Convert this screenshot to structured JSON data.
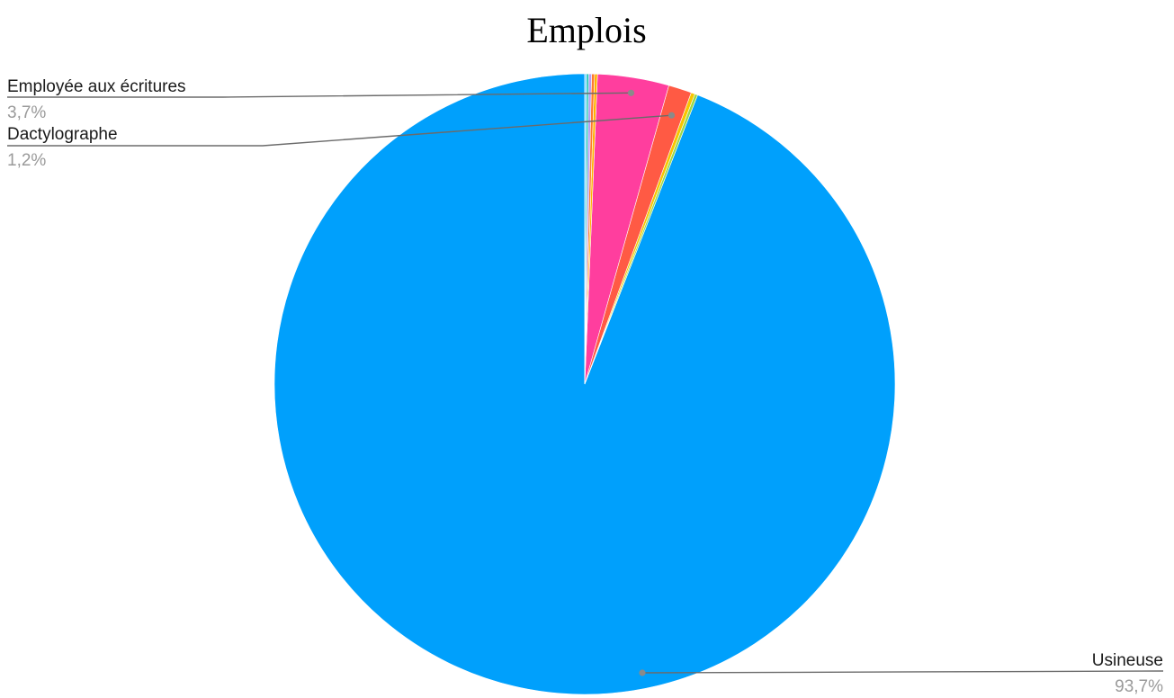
{
  "chart_data": {
    "type": "pie",
    "title": "Emplois",
    "start_angle_deg": 0,
    "direction": "counterclockwise",
    "slices": [
      {
        "name": "Usineuse",
        "value": 93.7,
        "color": "#00a0fc",
        "label_text": "Usineuse",
        "pct_text": "93,7%"
      },
      {
        "name": "",
        "value": 0.15,
        "color": "#9ad94a"
      },
      {
        "name": "",
        "value": 0.2,
        "color": "#f7c600"
      },
      {
        "name": "Dactylographe",
        "value": 1.2,
        "color": "#ff5a44",
        "label_text": "Dactylographe",
        "pct_text": "1,2%"
      },
      {
        "name": "Employée aux écritures",
        "value": 3.7,
        "color": "#ff3e9e",
        "label_text": "Employée aux écritures",
        "pct_text": "3,7%"
      },
      {
        "name": "",
        "value": 0.15,
        "color": "#ffb400"
      },
      {
        "name": "",
        "value": 0.15,
        "color": "#ff7a2e"
      },
      {
        "name": "",
        "value": 0.15,
        "color": "#b79cf2"
      },
      {
        "name": "",
        "value": 0.1,
        "color": "#00c2a8"
      },
      {
        "name": "",
        "value": 0.1,
        "color": "#7fd8ff"
      }
    ]
  }
}
